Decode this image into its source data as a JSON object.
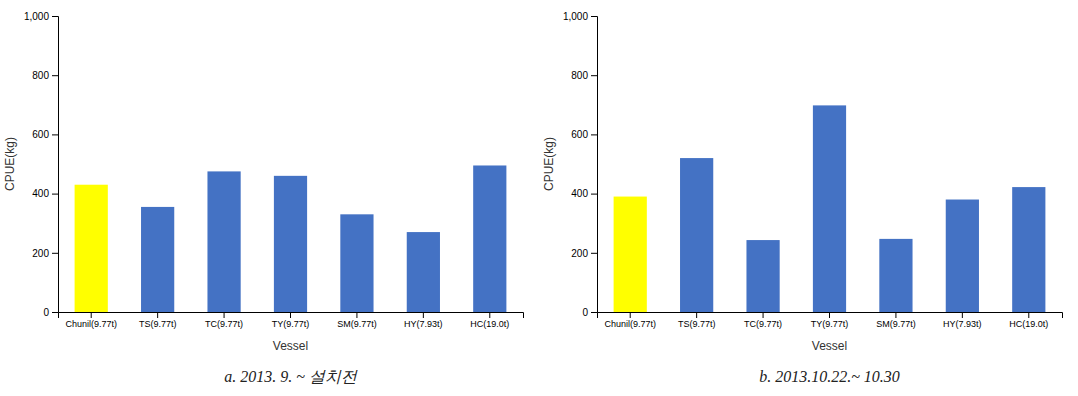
{
  "chart_data": [
    {
      "type": "bar",
      "title": "a.  2013. 9. ~ 설치전",
      "categories": [
        "Chunil(9.77t)",
        "TS(9.77t)",
        "TC(9.77t)",
        "TY(9.77t)",
        "SM(9.77t)",
        "HY(7.93t)",
        "HC(19.0t)"
      ],
      "values": [
        430,
        355,
        475,
        460,
        330,
        270,
        495
      ],
      "colors": [
        "#FFFF00",
        "#4472C4",
        "#4472C4",
        "#4472C4",
        "#4472C4",
        "#4472C4",
        "#4472C4"
      ],
      "xlabel": "Vessel",
      "ylabel": "CPUE(kg)",
      "ylim": [
        0,
        1000
      ],
      "yticks": [
        0,
        200,
        400,
        600,
        800,
        {
          "value": 1000,
          "label": "1,000"
        }
      ],
      "grid": false
    },
    {
      "type": "bar",
      "title": "b.  2013.10.22.~ 10.30",
      "categories": [
        "Chunil(9.77t)",
        "TS(9.77t)",
        "TC(9.77t)",
        "TY(9.77t)",
        "SM(9.77t)",
        "HY(7.93t)",
        "HC(19.0t)"
      ],
      "values": [
        390,
        520,
        243,
        698,
        247,
        380,
        422
      ],
      "colors": [
        "#FFFF00",
        "#4472C4",
        "#4472C4",
        "#4472C4",
        "#4472C4",
        "#4472C4",
        "#4472C4"
      ],
      "xlabel": "Vessel",
      "ylabel": "CPUE(kg)",
      "ylim": [
        0,
        1000
      ],
      "yticks": [
        0,
        200,
        400,
        600,
        800,
        {
          "value": 1000,
          "label": "1,000"
        }
      ],
      "grid": false
    }
  ]
}
